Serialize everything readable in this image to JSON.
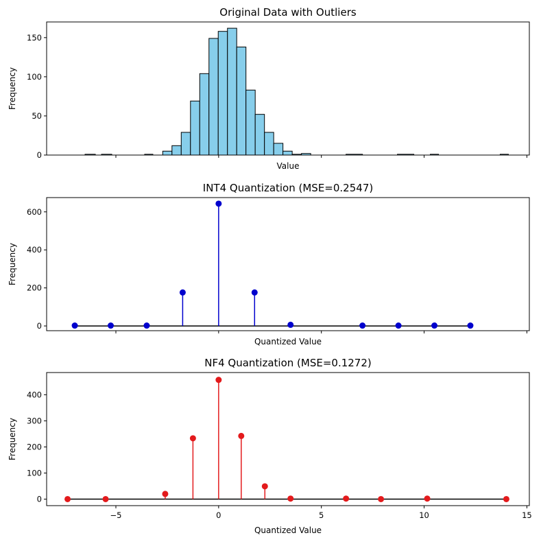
{
  "chart_data": [
    {
      "type": "bar",
      "subtype": "histogram",
      "title": "Original Data with Outliers",
      "xlabel": "Value",
      "ylabel": "Frequency",
      "color": "#87ceeb",
      "edgecolor": "#000000",
      "xlim": [
        -8.37,
        15.12
      ],
      "ylim": [
        0,
        170
      ],
      "yticks": [
        0,
        50,
        100,
        150
      ],
      "xticks": [
        -5,
        0,
        5,
        10,
        15
      ],
      "show_x_tick_labels": false,
      "bins": [
        {
          "x0": -6.5,
          "x1": -6.0,
          "value": 1
        },
        {
          "x0": -5.7,
          "x1": -5.2,
          "value": 1
        },
        {
          "x0": -3.6,
          "x1": -3.2,
          "value": 1
        },
        {
          "x0": -2.72,
          "x1": -2.27,
          "value": 5
        },
        {
          "x0": -2.27,
          "x1": -1.82,
          "value": 12
        },
        {
          "x0": -1.82,
          "x1": -1.37,
          "value": 29
        },
        {
          "x0": -1.37,
          "x1": -0.92,
          "value": 69
        },
        {
          "x0": -0.92,
          "x1": -0.47,
          "value": 104
        },
        {
          "x0": -0.47,
          "x1": -0.02,
          "value": 149
        },
        {
          "x0": -0.02,
          "x1": 0.43,
          "value": 158
        },
        {
          "x0": 0.43,
          "x1": 0.88,
          "value": 162
        },
        {
          "x0": 0.88,
          "x1": 1.33,
          "value": 138
        },
        {
          "x0": 1.33,
          "x1": 1.78,
          "value": 83
        },
        {
          "x0": 1.78,
          "x1": 2.23,
          "value": 52
        },
        {
          "x0": 2.23,
          "x1": 2.68,
          "value": 29
        },
        {
          "x0": 2.68,
          "x1": 3.13,
          "value": 15
        },
        {
          "x0": 3.13,
          "x1": 3.58,
          "value": 5
        },
        {
          "x0": 3.58,
          "x1": 4.03,
          "value": 1
        },
        {
          "x0": 4.03,
          "x1": 4.48,
          "value": 2
        },
        {
          "x0": 6.2,
          "x1": 7.0,
          "value": 1
        },
        {
          "x0": 8.7,
          "x1": 9.5,
          "value": 1
        },
        {
          "x0": 10.3,
          "x1": 10.7,
          "value": 1
        },
        {
          "x0": 13.7,
          "x1": 14.1,
          "value": 1
        }
      ]
    },
    {
      "type": "stem",
      "title": "INT4 Quantization (MSE=0.2547)",
      "xlabel": "Quantized Value",
      "ylabel": "Frequency",
      "color": "#0000cd",
      "xlim": [
        -8.37,
        15.12
      ],
      "ylim": [
        -25,
        675
      ],
      "yticks": [
        0,
        200,
        400,
        600
      ],
      "xticks": [
        -5,
        0,
        5,
        10,
        15
      ],
      "show_x_tick_labels": false,
      "x": [
        -7.0,
        -5.25,
        -3.5,
        -1.75,
        0.0,
        1.75,
        3.5,
        7.0,
        8.75,
        10.5,
        12.25
      ],
      "y": [
        2,
        2,
        2,
        176,
        643,
        176,
        6,
        2,
        2,
        2,
        2
      ]
    },
    {
      "type": "stem",
      "title": "NF4 Quantization (MSE=0.1272)",
      "xlabel": "Quantized Value",
      "ylabel": "Frequency",
      "color": "#e31a1c",
      "xlim": [
        -8.37,
        15.12
      ],
      "ylim": [
        -25,
        485
      ],
      "yticks": [
        0,
        100,
        200,
        300,
        400
      ],
      "xticks": [
        -5,
        0,
        5,
        10,
        15
      ],
      "show_x_tick_labels": true,
      "x": [
        -7.35,
        -5.5,
        -2.6,
        -1.25,
        0.0,
        1.1,
        2.25,
        3.5,
        6.2,
        7.9,
        10.15,
        14.0
      ],
      "y": [
        0,
        0,
        20,
        233,
        457,
        242,
        49,
        2,
        2,
        0,
        2,
        0
      ]
    }
  ]
}
